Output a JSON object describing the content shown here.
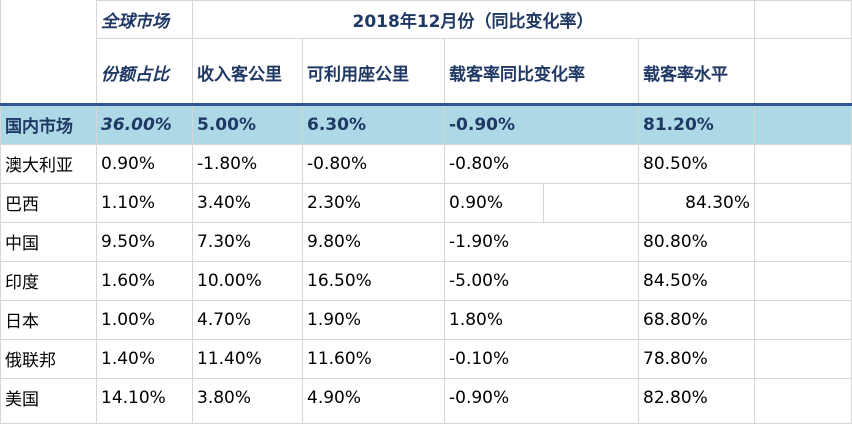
{
  "header": {
    "global_market": "全球市场",
    "period_title": "2018年12月份（同比变化率）",
    "columns": [
      "份额占比",
      "收入客公里",
      "可利用座公里",
      "载客率同比变化率",
      "载客率水平"
    ]
  },
  "domestic": {
    "label": "国内市场",
    "values": [
      "36.00%",
      "5.00%",
      "6.30%",
      "-0.90%",
      "81.20%"
    ]
  },
  "rows": [
    {
      "label": "澳大利亚",
      "values": [
        "0.90%",
        "-1.80%",
        "-0.80%",
        "-0.80%",
        "80.50%"
      ]
    },
    {
      "label": "巴西",
      "values": [
        "1.10%",
        "3.40%",
        "2.30%",
        "0.90%",
        "84.30%"
      ]
    },
    {
      "label": "中国",
      "values": [
        "9.50%",
        "7.30%",
        "9.80%",
        "-1.90%",
        "80.80%"
      ]
    },
    {
      "label": "印度",
      "values": [
        "1.60%",
        "10.00%",
        "16.50%",
        "-5.00%",
        "84.50%"
      ]
    },
    {
      "label": "日本",
      "values": [
        "1.00%",
        "4.70%",
        "1.90%",
        "1.80%",
        "68.80%"
      ]
    },
    {
      "label": "俄联邦",
      "values": [
        "1.40%",
        "11.40%",
        "11.60%",
        "-0.10%",
        "78.80%"
      ]
    },
    {
      "label": "美国",
      "values": [
        "14.10%",
        "3.80%",
        "4.90%",
        "-0.90%",
        "82.80%"
      ]
    }
  ],
  "colors": {
    "header_text": "#1f3864",
    "domestic_fill": "#add8e6",
    "accent_line": "#2f5597",
    "grid": "#d6d6d6"
  }
}
